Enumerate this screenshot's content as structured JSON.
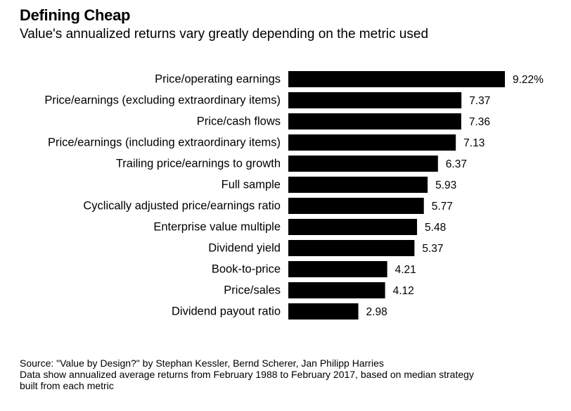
{
  "chart_data": {
    "type": "bar",
    "orientation": "horizontal",
    "title": "Defining Cheap",
    "subtitle": "Value's annualized returns vary greatly depending on the metric used",
    "categories": [
      "Price/operating earnings",
      "Price/earnings (excluding extraordinary items)",
      "Price/cash flows",
      "Price/earnings (including extraordinary items)",
      "Trailing price/earnings to growth",
      "Full sample",
      "Cyclically adjusted price/earnings ratio",
      "Enterprise value multiple",
      "Dividend yield",
      "Book-to-price",
      "Price/sales",
      "Dividend payout ratio"
    ],
    "values": [
      9.22,
      7.37,
      7.36,
      7.13,
      6.37,
      5.93,
      5.77,
      5.48,
      5.37,
      4.21,
      4.12,
      2.98
    ],
    "value_labels": [
      "9.22%",
      "7.37",
      "7.36",
      "7.13",
      "6.37",
      "5.93",
      "5.77",
      "5.48",
      "5.37",
      "4.21",
      "4.12",
      "2.98"
    ],
    "xlim": [
      0,
      9.22
    ],
    "xlabel": "",
    "ylabel": "",
    "grid": false,
    "bar_color": "#000000"
  },
  "footer": {
    "source": "Source: \"Value by Design?\" by Stephan Kessler, Bernd Scherer, Jan Philipp Harries",
    "note_line1": "Data show annualized average returns from February 1988 to February 2017, based on median strategy",
    "note_line2": "built from each metric"
  }
}
